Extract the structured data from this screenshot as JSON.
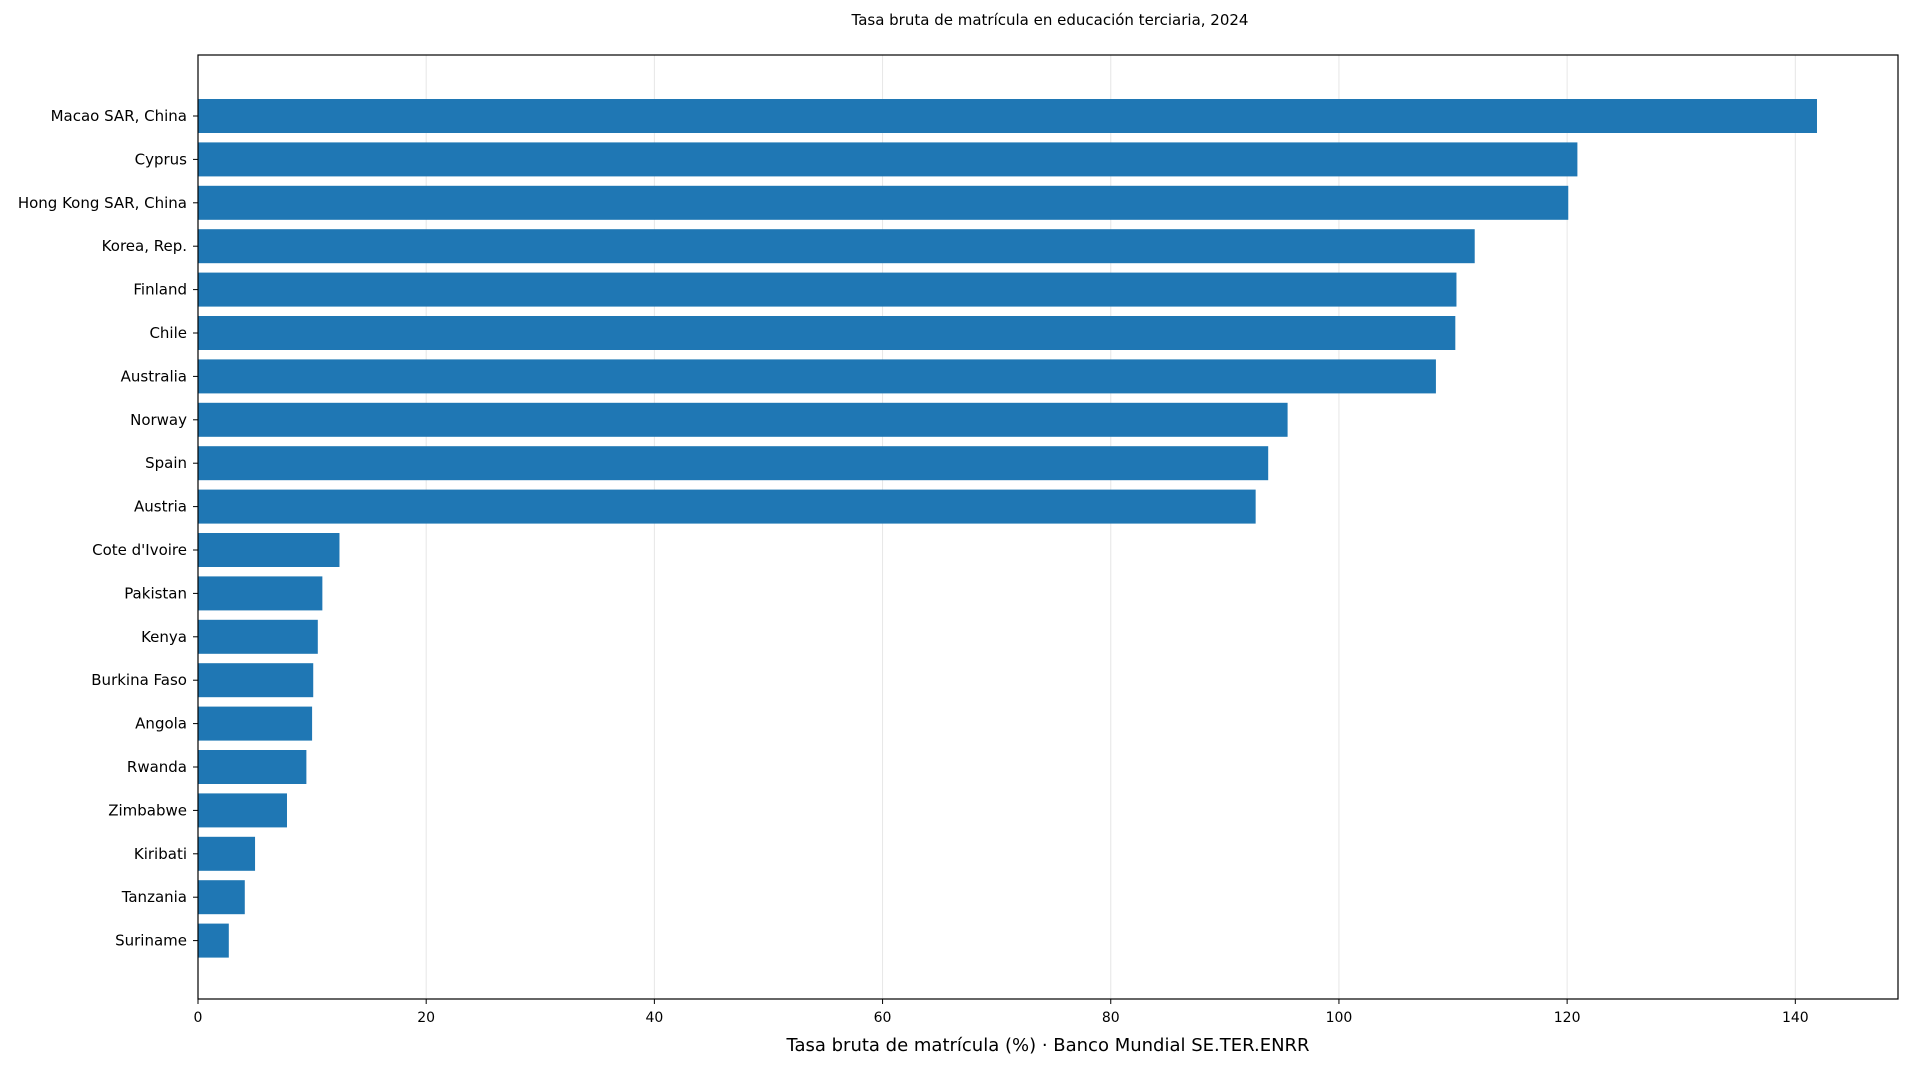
{
  "chart_data": {
    "type": "bar",
    "orientation": "horizontal",
    "title": "Tasa bruta de matrícula en educación terciaria, 2024",
    "xlabel": "Tasa bruta de matrícula (%) · Banco Mundial SE.TER.ENRR",
    "ylabel": "",
    "xlim": [
      0,
      149
    ],
    "xticks": [
      0,
      20,
      40,
      60,
      80,
      100,
      120,
      140
    ],
    "grid": true,
    "bar_color": "#1f77b4",
    "categories": [
      "Macao SAR, China",
      "Cyprus",
      "Hong Kong SAR, China",
      "Korea, Rep.",
      "Finland",
      "Chile",
      "Australia",
      "Norway",
      "Spain",
      "Austria",
      "Cote d'Ivoire",
      "Pakistan",
      "Kenya",
      "Burkina Faso",
      "Angola",
      "Rwanda",
      "Zimbabwe",
      "Kiribati",
      "Tanzania",
      "Suriname"
    ],
    "values": [
      141.9,
      120.9,
      120.1,
      111.9,
      110.3,
      110.2,
      108.5,
      95.5,
      93.8,
      92.7,
      12.4,
      10.9,
      10.5,
      10.1,
      10.0,
      9.5,
      7.8,
      5.0,
      4.1,
      2.7
    ]
  }
}
